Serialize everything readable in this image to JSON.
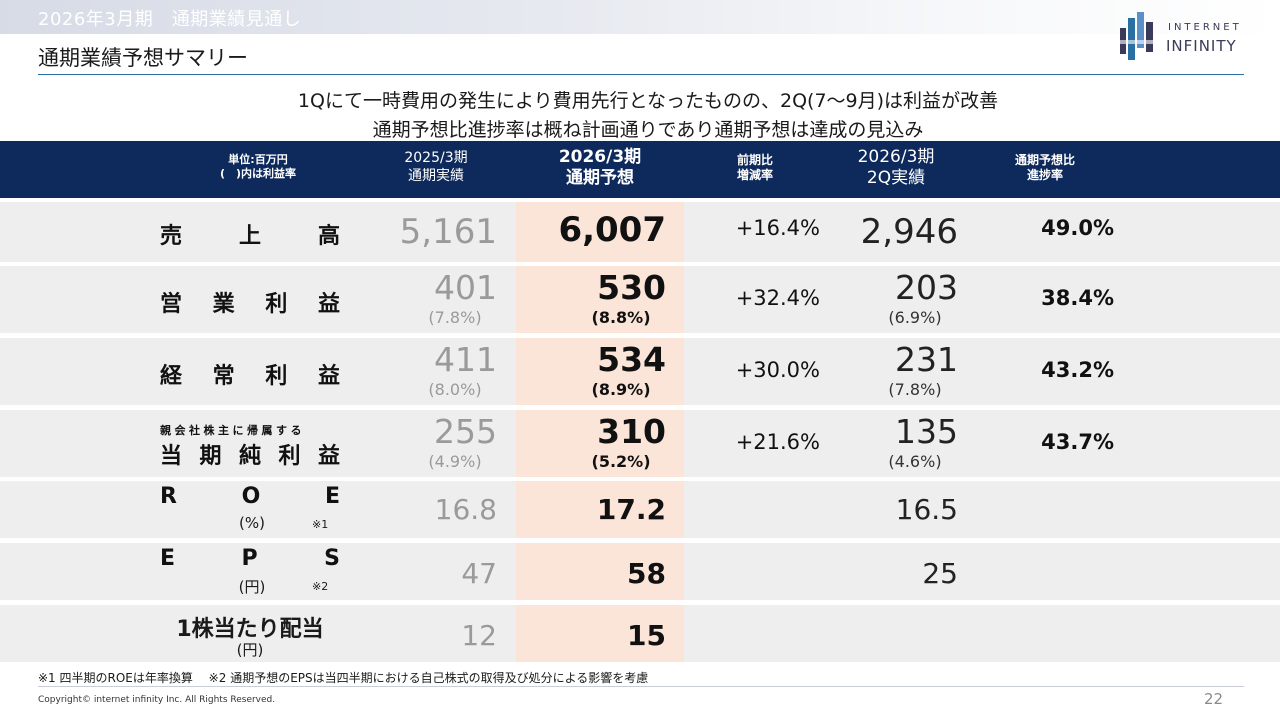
{
  "header": {
    "section_title": "2026年3月期　通期業績見通し",
    "page_title": "通期業績予想サマリー"
  },
  "logo": {
    "line1": "INTERNET",
    "line2": "INFINITY"
  },
  "headline": {
    "line1": "1Qにて一時費用の発生により費用先行となったものの、2Q(7～9月)は利益が改善",
    "line2": "通期予想比進捗率は概ね計画通りであり通期予想は達成の見込み"
  },
  "table": {
    "columns": {
      "unit_line1": "単位:百万円",
      "unit_line2": "(　)内は利益率",
      "prev_line1": "2025/3期",
      "prev_line2": "通期実績",
      "fcst_line1": "2026/3期",
      "fcst_line2": "通期予想",
      "yoy_line1": "前期比",
      "yoy_line2": "増減率",
      "q2_line1": "2026/3期",
      "q2_line2": "2Q実績",
      "prog_line1": "通期予想比",
      "prog_line2": "進捗率"
    },
    "rows": {
      "sales": {
        "label": [
          "売",
          "上",
          "高"
        ],
        "prev": "5,161",
        "fcst": "6,007",
        "yoy": "+16.4%",
        "q2": "2,946",
        "progress": "49.0%"
      },
      "op": {
        "label": [
          "営",
          "業",
          "利",
          "益"
        ],
        "prev": "401",
        "prev_margin": "(7.8%)",
        "fcst": "530",
        "fcst_margin": "(8.8%)",
        "yoy": "+32.4%",
        "q2": "203",
        "q2_margin": "(6.9%)",
        "progress": "38.4%"
      },
      "ordinary": {
        "label": [
          "経",
          "常",
          "利",
          "益"
        ],
        "prev": "411",
        "prev_margin": "(8.0%)",
        "fcst": "534",
        "fcst_margin": "(8.9%)",
        "yoy": "+30.0%",
        "q2": "231",
        "q2_margin": "(7.8%)",
        "progress": "43.2%"
      },
      "net": {
        "label_small": "親会社株主に帰属する",
        "label": [
          "当",
          "期",
          "純",
          "利",
          "益"
        ],
        "prev": "255",
        "prev_margin": "(4.9%)",
        "fcst": "310",
        "fcst_margin": "(5.2%)",
        "yoy": "+21.6%",
        "q2": "135",
        "q2_margin": "(4.6%)",
        "progress": "43.7%"
      },
      "roe": {
        "label": [
          "R",
          "O",
          "E"
        ],
        "unit": "(%)",
        "note": "※1",
        "prev": "16.8",
        "fcst": "17.2",
        "q2": "16.5"
      },
      "eps": {
        "label": [
          "E",
          "P",
          "S"
        ],
        "unit": "(円)",
        "note": "※2",
        "prev": "47",
        "fcst": "58",
        "q2": "25"
      },
      "dps": {
        "label": "1株当たり配当",
        "unit": "(円)",
        "prev": "12",
        "fcst": "15"
      }
    }
  },
  "footnote": "※1 四半期のROEは年率換算　 ※2 通期予想のEPSは当四半期における自己株式の取得及び処分による影響を考慮",
  "copyright": "Copyright© internet infinity Inc. All Rights Reserved.",
  "page_number": "22"
}
